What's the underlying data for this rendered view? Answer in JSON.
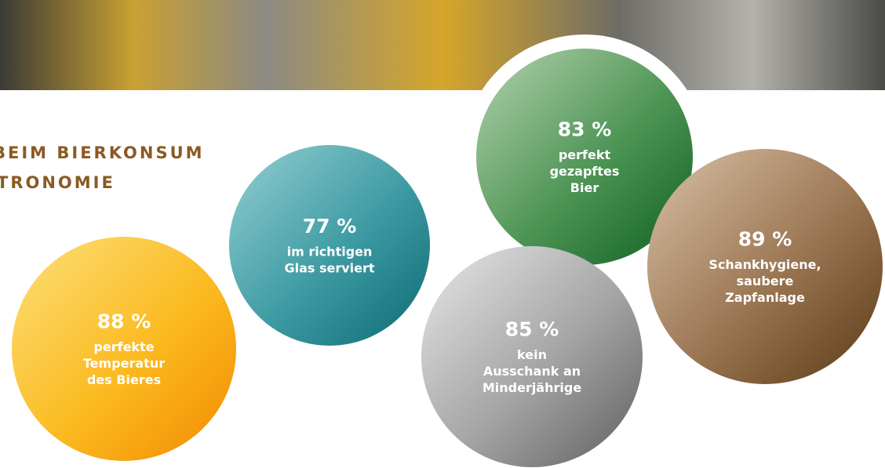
{
  "heading": {
    "lines": [
      "BEIM BIERKONSUM",
      "TRONOMIE"
    ]
  },
  "bubbles": [
    {
      "percent": "83 %",
      "lines": [
        "perfekt",
        "gezapftes",
        "Bier"
      ]
    },
    {
      "percent": "77 %",
      "lines": [
        "im richtigen",
        "Glas serviert"
      ]
    },
    {
      "percent": "88 %",
      "lines": [
        "perfekte",
        "Temperatur",
        "des Bieres"
      ]
    },
    {
      "percent": "85 %",
      "lines": [
        "kein",
        "Ausschank an",
        "Minderjährige"
      ]
    },
    {
      "percent": "89 %",
      "lines": [
        "Schankhygiene,",
        "saubere",
        "Zapfanlage"
      ]
    }
  ]
}
